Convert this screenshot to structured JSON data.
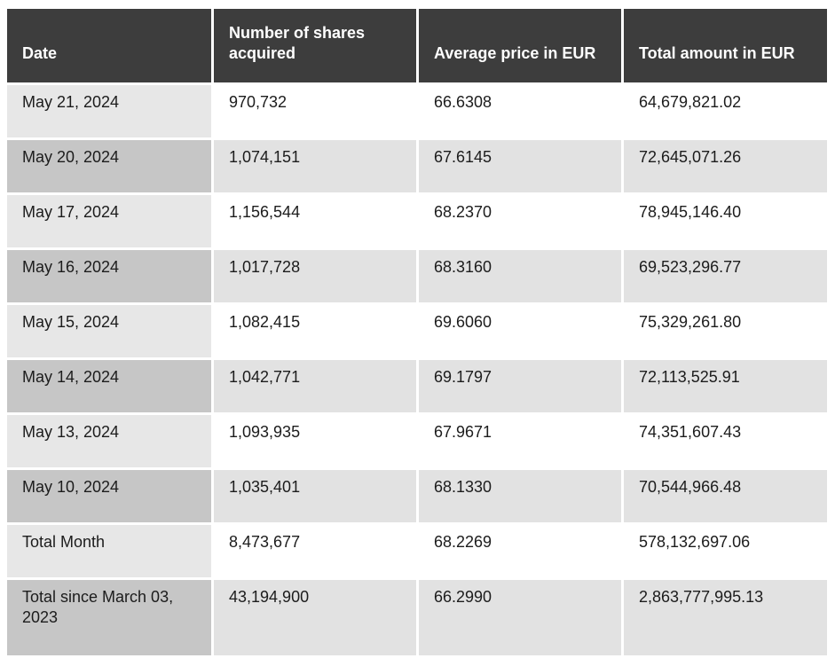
{
  "colors": {
    "header_bg": "#3d3d3d",
    "header_text": "#ffffff",
    "row_date_light": "#e7e7e7",
    "row_date_medium": "#c6c6c6",
    "row_data_white": "#ffffff",
    "row_data_light": "#e2e2e2",
    "body_text": "#1c1c1c",
    "page_bg": "#ffffff"
  },
  "table": {
    "columns": [
      "Date",
      "Number of shares acquired",
      "Average price in EUR",
      "Total amount in EUR"
    ],
    "rows": [
      {
        "date": "May 21, 2024",
        "shares": "970,732",
        "price": "66.6308",
        "total": "64,679,821.02"
      },
      {
        "date": "May 20, 2024",
        "shares": "1,074,151",
        "price": "67.6145",
        "total": "72,645,071.26"
      },
      {
        "date": "May 17, 2024",
        "shares": "1,156,544",
        "price": "68.2370",
        "total": "78,945,146.40"
      },
      {
        "date": "May 16, 2024",
        "shares": "1,017,728",
        "price": "68.3160",
        "total": "69,523,296.77"
      },
      {
        "date": "May 15, 2024",
        "shares": "1,082,415",
        "price": "69.6060",
        "total": "75,329,261.80"
      },
      {
        "date": "May 14, 2024",
        "shares": "1,042,771",
        "price": "69.1797",
        "total": "72,113,525.91"
      },
      {
        "date": "May 13, 2024",
        "shares": "1,093,935",
        "price": "67.9671",
        "total": "74,351,607.43"
      },
      {
        "date": "May 10, 2024",
        "shares": "1,035,401",
        "price": "68.1330",
        "total": "70,544,966.48"
      },
      {
        "date": "Total Month",
        "shares": "8,473,677",
        "price": "68.2269",
        "total": "578,132,697.06"
      },
      {
        "date": "Total since March 03, 2023",
        "shares": "43,194,900",
        "price": "66.2990",
        "total": "2,863,777,995.13"
      }
    ]
  }
}
